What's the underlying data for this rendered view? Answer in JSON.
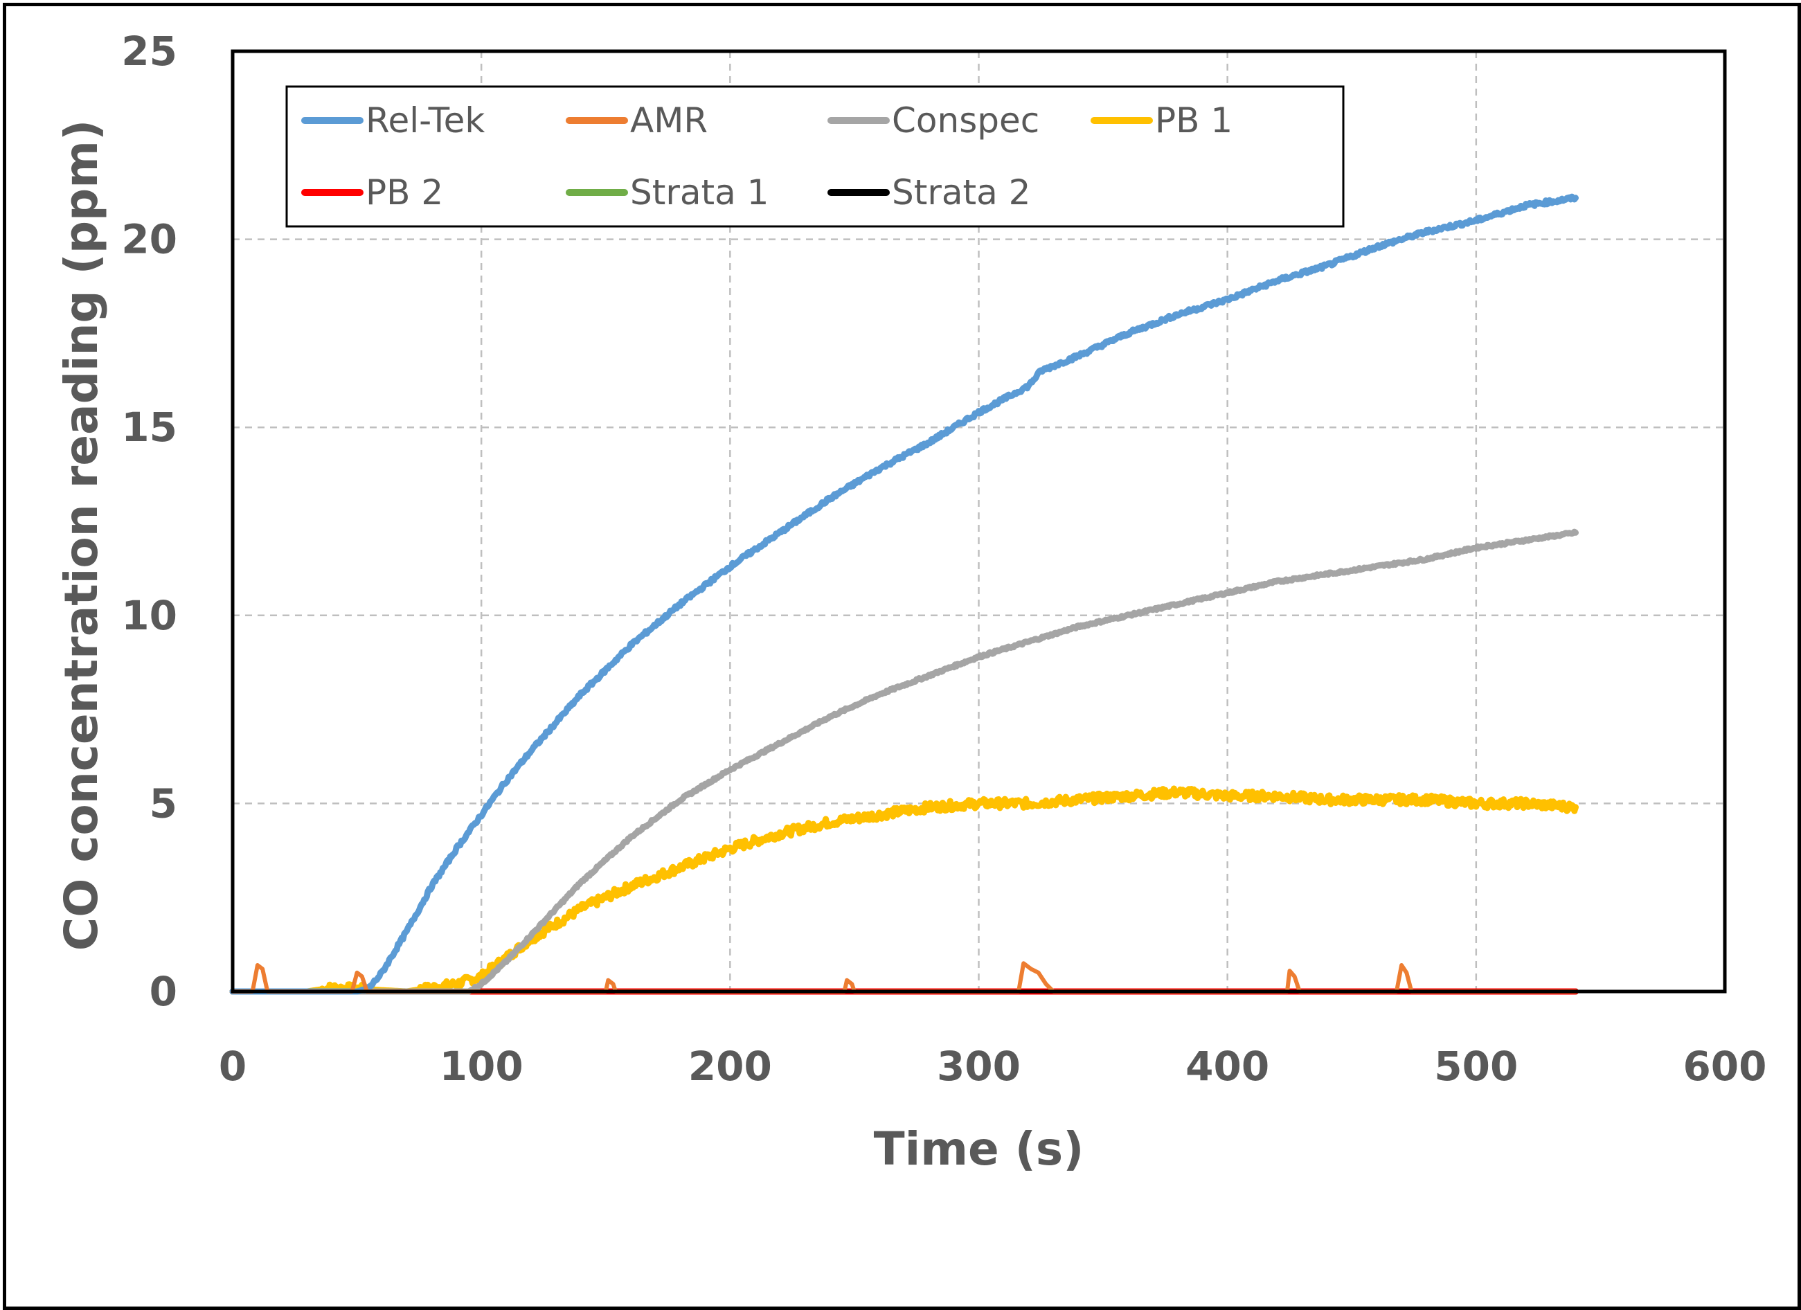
{
  "chart_data": {
    "type": "line",
    "title": "",
    "xlabel": "Time (s)",
    "ylabel": "CO concentration reading (ppm)",
    "xlim": [
      0,
      600
    ],
    "ylim": [
      0,
      25
    ],
    "x_ticks": [
      0,
      100,
      200,
      300,
      400,
      500,
      600
    ],
    "y_ticks": [
      0,
      5,
      10,
      15,
      20,
      25
    ],
    "grid": true,
    "legend_position": "top-left inside",
    "series": [
      {
        "name": "Rel-Tek",
        "color": "#5B9BD5",
        "x": [
          0,
          50,
          55,
          60,
          70,
          80,
          90,
          100,
          110,
          120,
          140,
          160,
          180,
          200,
          220,
          240,
          260,
          280,
          300,
          320,
          325,
          340,
          360,
          380,
          400,
          420,
          440,
          460,
          480,
          500,
          520,
          540
        ],
        "y": [
          0,
          0,
          0.1,
          0.5,
          1.6,
          2.8,
          3.8,
          4.7,
          5.6,
          6.4,
          7.9,
          9.2,
          10.3,
          11.3,
          12.2,
          13.1,
          13.9,
          14.6,
          15.4,
          16.1,
          16.5,
          16.9,
          17.5,
          18.0,
          18.4,
          18.9,
          19.3,
          19.8,
          20.2,
          20.5,
          20.9,
          21.1
        ],
        "noise": 0.05
      },
      {
        "name": "AMR",
        "color": "#ED7D31",
        "x": [
          0,
          8,
          10,
          12,
          14,
          48,
          50,
          52,
          54,
          150,
          151,
          153,
          154,
          246,
          247,
          249,
          250,
          316,
          318,
          321,
          324,
          327,
          330,
          424,
          425,
          427,
          429,
          468,
          470,
          472,
          474,
          540
        ],
        "y": [
          0,
          0,
          0.7,
          0.6,
          0,
          0,
          0.5,
          0.4,
          0,
          0,
          0.3,
          0.2,
          0,
          0,
          0.3,
          0.2,
          0,
          0,
          0.75,
          0.6,
          0.5,
          0.2,
          0,
          0,
          0.55,
          0.4,
          0,
          0,
          0.7,
          0.5,
          0,
          0
        ],
        "noise": 0
      },
      {
        "name": "Conspec",
        "color": "#A5A5A5",
        "x": [
          0,
          95,
          100,
          110,
          120,
          140,
          160,
          180,
          200,
          220,
          240,
          260,
          280,
          300,
          320,
          340,
          360,
          380,
          400,
          420,
          440,
          460,
          480,
          500,
          520,
          540
        ],
        "y": [
          0,
          0,
          0.2,
          0.8,
          1.5,
          2.9,
          4.1,
          5.1,
          5.9,
          6.6,
          7.3,
          7.9,
          8.4,
          8.9,
          9.3,
          9.7,
          10.0,
          10.3,
          10.6,
          10.9,
          11.1,
          11.3,
          11.5,
          11.8,
          12.0,
          12.2
        ],
        "noise": 0.03
      },
      {
        "name": "PB 1",
        "color": "#FFC000",
        "x": [
          0,
          30,
          40,
          70,
          80,
          90,
          100,
          110,
          120,
          140,
          160,
          180,
          200,
          220,
          240,
          260,
          280,
          300,
          320,
          340,
          360,
          380,
          400,
          420,
          440,
          460,
          480,
          500,
          520,
          540
        ],
        "y": [
          0,
          0,
          0.1,
          0,
          0.1,
          0.2,
          0.4,
          0.9,
          1.4,
          2.2,
          2.8,
          3.3,
          3.8,
          4.2,
          4.5,
          4.7,
          4.9,
          5.0,
          5.0,
          5.1,
          5.2,
          5.3,
          5.2,
          5.2,
          5.1,
          5.1,
          5.1,
          5.0,
          5.0,
          4.9
        ],
        "noise": 0.12
      },
      {
        "name": "PB 2",
        "color": "#FF0000",
        "x": [
          0,
          540
        ],
        "y": [
          0,
          0
        ],
        "noise": 0
      },
      {
        "name": "Strata 1",
        "color": "#70AD47",
        "x": [
          0,
          540
        ],
        "y": [
          0,
          0
        ],
        "noise": 0
      },
      {
        "name": "Strata 2",
        "color": "#000000",
        "x": [
          0,
          540
        ],
        "y": [
          0,
          0
        ],
        "noise": 0
      }
    ]
  }
}
